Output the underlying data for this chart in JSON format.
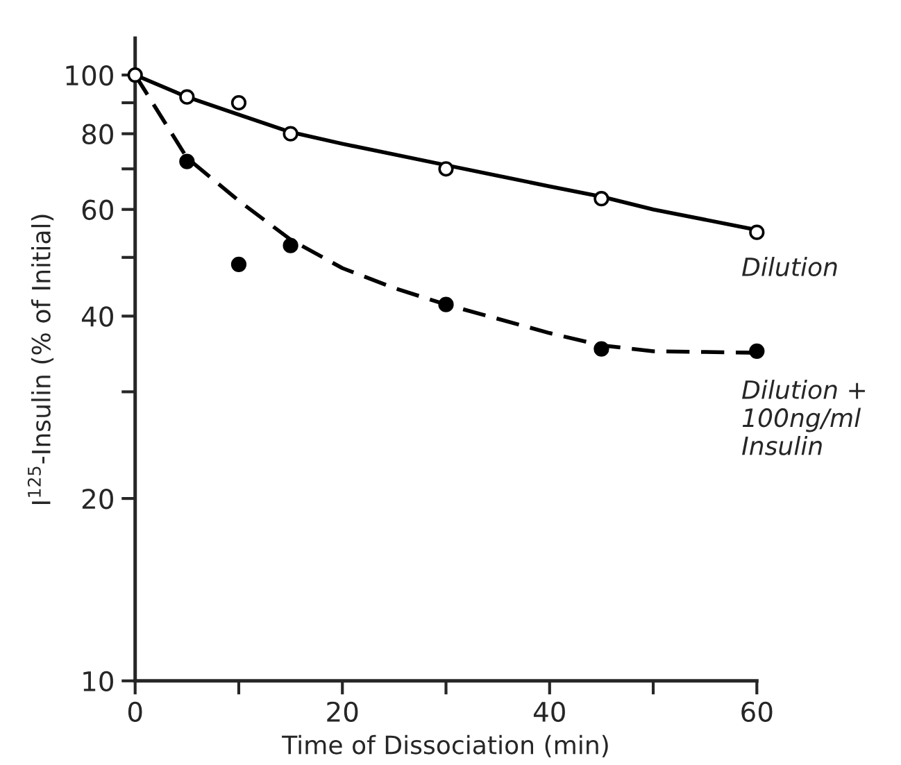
{
  "chart_data": {
    "type": "scatter",
    "xlabel": "Time of Dissociation (min)",
    "ylabel": "I$^{125}$-Insulin (% of Initial)",
    "log": "y",
    "xlim": [
      0,
      60
    ],
    "xticks": [
      0,
      {
        "value": 10,
        "label": null
      },
      20,
      {
        "value": 30,
        "label": null
      },
      40,
      {
        "value": 50,
        "label": null
      },
      60
    ],
    "ylim": [
      10,
      115
    ],
    "yticks": [
      10,
      20,
      {
        "value": 30,
        "label": null
      },
      40,
      {
        "value": 50,
        "label": null
      },
      60,
      {
        "value": 70,
        "label": null
      },
      80,
      {
        "value": 90,
        "label": null
      },
      100
    ],
    "grid": false,
    "legend": false,
    "series": [
      {
        "marker": "circle",
        "color": "#ffffff",
        "x": [
          0,
          5,
          10,
          15,
          30,
          45,
          60
        ],
        "values": [
          100,
          92,
          90,
          80,
          70,
          62.5,
          55
        ]
      },
      {
        "marker": "circle",
        "color": "#000000",
        "x": [
          5,
          10,
          15,
          30,
          45,
          60
        ],
        "values": [
          72,
          48.7,
          52.3,
          41.8,
          35.3,
          35
        ]
      },
      {
        "type": "line",
        "name": "Dilution",
        "line_style": "solid",
        "color": "#000000",
        "x": [
          0,
          5,
          10,
          15,
          20,
          30,
          40,
          45,
          50,
          60
        ],
        "values": [
          100,
          92,
          86,
          80.5,
          77,
          71,
          65.5,
          63,
          60,
          55.5
        ]
      },
      {
        "type": "line",
        "name": "Dilution +\n100ng/ml\nInsulin",
        "line_style": "dashed",
        "color": "#000000",
        "x": [
          0,
          5,
          10,
          15,
          20,
          25,
          30,
          40,
          45,
          50,
          60
        ],
        "values": [
          100,
          73,
          62,
          53.5,
          48,
          44.5,
          41.8,
          37.5,
          35.8,
          35,
          34.8
        ]
      }
    ]
  }
}
